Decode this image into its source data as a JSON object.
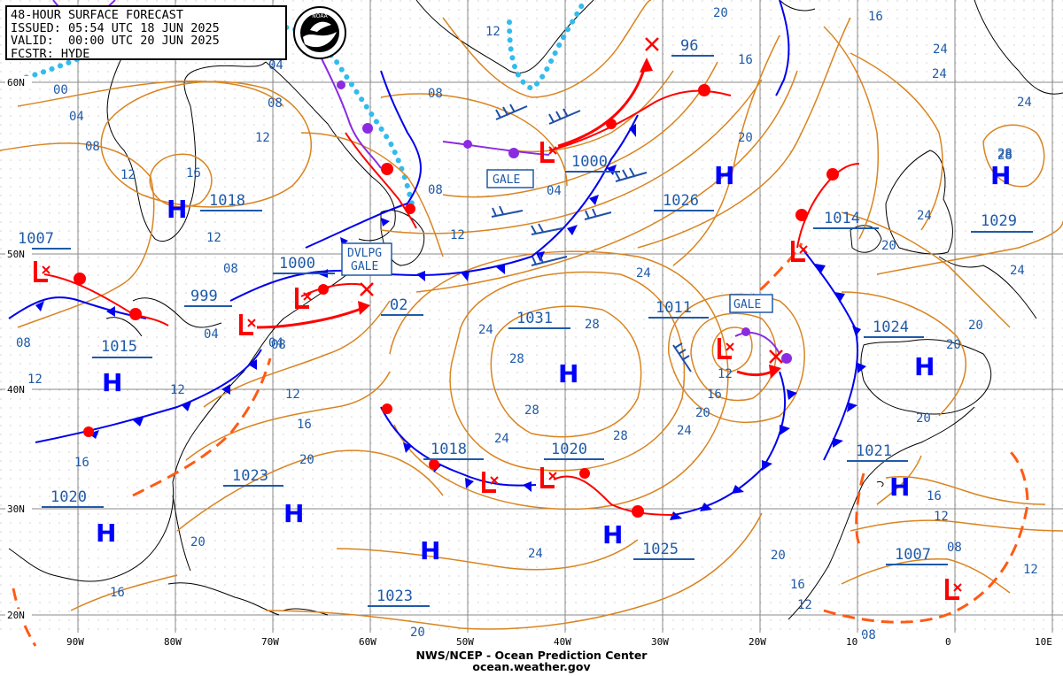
{
  "header": {
    "title": "48-HOUR SURFACE FORECAST",
    "issued": "ISSUED: 05:54 UTC 18 JUN 2025",
    "valid": "VALID:  00:00 UTC 20 JUN 2025",
    "forecaster": "FCSTR: HYDE"
  },
  "logo": {
    "text": "NOAA",
    "icon": "noaa-logo-icon"
  },
  "footer": {
    "line1": "NWS/NCEP - Ocean Prediction Center",
    "line2": "ocean.weather.gov"
  },
  "colors": {
    "isobar": "#d98420",
    "isobar_label": "#1f5aa8",
    "high": "#0000ff",
    "low": "#ff0000",
    "cold_front": "#0000ee",
    "warm_front": "#ff0000",
    "occluded_front": "#8a2be2",
    "ice_edge": "#33bbee",
    "trough": "#ff5a14",
    "grid": "#777777",
    "land": "#000000"
  },
  "lat_labels": [
    "60N",
    "50N",
    "40N",
    "30N",
    "20N"
  ],
  "lon_labels": [
    "90W",
    "80W",
    "70W",
    "60W",
    "50W",
    "40W",
    "30W",
    "20W",
    "10",
    "0",
    "10E"
  ],
  "highs": [
    {
      "id": "greenland",
      "pressure": null
    },
    {
      "id": "hudson",
      "pressure": "1018"
    },
    {
      "id": "central-atlantic",
      "pressure": "1031"
    },
    {
      "id": "east-atlantic",
      "pressure": "1026"
    },
    {
      "id": "norway",
      "pressure": "1029"
    },
    {
      "id": "iberia",
      "pressure": "1024"
    },
    {
      "id": "morocco",
      "pressure": "1021"
    },
    {
      "id": "ohio",
      "pressure": "1015"
    },
    {
      "id": "carolinas",
      "pressure": "1023"
    },
    {
      "id": "gulf",
      "pressure": "1020"
    },
    {
      "id": "sargasso",
      "pressure": "1023"
    },
    {
      "id": "subtropical",
      "pressure": "1025"
    }
  ],
  "lows": [
    {
      "id": "denmark-strait",
      "pressure": "1000"
    },
    {
      "id": "great-lakes",
      "pressure": "1007"
    },
    {
      "id": "quebec",
      "pressure": "999"
    },
    {
      "id": "gulf-st-lawrence",
      "pressure": "1000"
    },
    {
      "id": "maine",
      "pressure": null
    },
    {
      "id": "ireland",
      "pressure": "1014"
    },
    {
      "id": "azores",
      "pressure": "1011"
    },
    {
      "id": "sw-atlantic-1",
      "pressure": "1018"
    },
    {
      "id": "sw-atlantic-2",
      "pressure": "1020"
    },
    {
      "id": "west-africa",
      "pressure": "1007"
    }
  ],
  "warnings": [
    "GALE",
    "DVLPG",
    "GALE",
    "GALE"
  ],
  "forecast_positions": [
    {
      "id": "denmark-strait-low",
      "pressure": "96"
    },
    {
      "id": "newfoundland-low",
      "pressure": "02"
    }
  ],
  "isobar_labels": [
    "00",
    "04",
    "08",
    "12",
    "16",
    "20",
    "24",
    "28",
    "04",
    "04",
    "08",
    "12",
    "16",
    "12",
    "08",
    "08",
    "12",
    "16",
    "20",
    "24",
    "24",
    "20",
    "28",
    "12",
    "16",
    "20",
    "24",
    "28",
    "28",
    "24",
    "28",
    "24",
    "20",
    "16",
    "12",
    "08",
    "20",
    "16",
    "12",
    "08",
    "12",
    "16",
    "20",
    "24",
    "20",
    "16",
    "12",
    "24",
    "20",
    "24",
    "08",
    "04",
    "12",
    "12",
    "08",
    "04",
    "08",
    "12",
    "16",
    "20",
    "24",
    "28",
    "20"
  ]
}
